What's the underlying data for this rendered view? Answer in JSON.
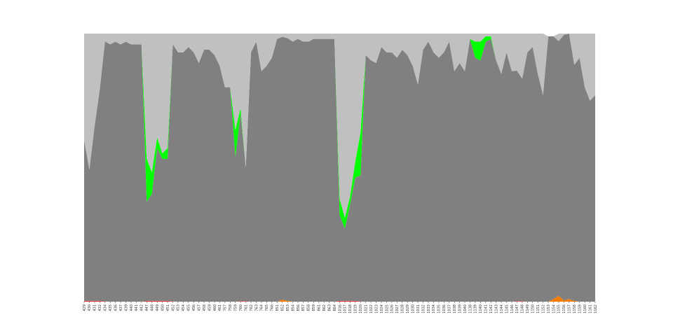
{
  "chart_data": {
    "type": "area",
    "stacked": true,
    "title": "",
    "xlabel": "",
    "ylabel": "",
    "ylim": [
      0,
      100
    ],
    "grid": false,
    "legend": "none",
    "categories": [
      "429",
      "430",
      "431",
      "432",
      "434",
      "435",
      "436",
      "437",
      "439",
      "440",
      "441",
      "442",
      "447",
      "448",
      "449",
      "450",
      "451",
      "452",
      "453",
      "454",
      "455",
      "456",
      "457",
      "458",
      "459",
      "460",
      "461",
      "757",
      "758",
      "759",
      "760",
      "761",
      "762",
      "763",
      "764",
      "765",
      "766",
      "851",
      "852",
      "853",
      "854",
      "856",
      "857",
      "858",
      "859",
      "861",
      "862",
      "863",
      "864",
      "1016",
      "1017",
      "1018",
      "1019",
      "1020",
      "1021",
      "1022",
      "1023",
      "1024",
      "1025",
      "1026",
      "1027",
      "1028",
      "1029",
      "1030",
      "1031",
      "1032",
      "1033",
      "1034",
      "1035",
      "1036",
      "1037",
      "1038",
      "1039",
      "1040",
      "1138",
      "1139",
      "1140",
      "1141",
      "1142",
      "1143",
      "1144",
      "1145",
      "1146",
      "1147",
      "1148",
      "1149",
      "1150",
      "1151",
      "1152",
      "1153",
      "1154",
      "1155",
      "1156",
      "1157",
      "1158",
      "1159",
      "1160",
      "1161",
      "1162"
    ],
    "series": [
      {
        "color": "#e53935",
        "values": [
          0.3,
          0.3,
          0.3,
          0.3,
          0.1,
          0,
          0,
          0,
          0,
          0,
          0,
          0,
          0.3,
          0.3,
          0.3,
          0.3,
          0.3,
          0.1,
          0,
          0,
          0,
          0,
          0,
          0,
          0,
          0,
          0,
          0,
          0,
          0,
          0.2,
          0.2,
          0,
          0,
          0,
          0,
          0,
          0,
          0,
          0,
          0,
          0,
          0,
          0,
          0,
          0,
          0,
          0,
          0,
          0.3,
          0.3,
          0.3,
          0.3,
          0.1,
          0,
          0,
          0,
          0,
          0,
          0,
          0,
          0,
          0,
          0,
          0,
          0,
          0,
          0,
          0,
          0,
          0,
          0,
          0,
          0,
          0,
          0,
          0,
          0,
          0,
          0,
          0,
          0,
          0,
          0.2,
          0.2,
          0,
          0,
          0,
          0,
          0,
          0,
          0,
          0,
          0,
          0,
          0,
          0,
          0,
          0
        ]
      },
      {
        "color": "#f57c00",
        "values": [
          0,
          0,
          0,
          0,
          0,
          0,
          0,
          0,
          0,
          0,
          0,
          0,
          0,
          0,
          0,
          0,
          0,
          0,
          0,
          0,
          0,
          0,
          0,
          0,
          0,
          0,
          0,
          0,
          0,
          0,
          0,
          0,
          0,
          0,
          0,
          0,
          0,
          0,
          0.8,
          0.3,
          0,
          0,
          0,
          0,
          0,
          0,
          0,
          0,
          0,
          0,
          0,
          0,
          0,
          0,
          0,
          0,
          0,
          0,
          0,
          0,
          0,
          0,
          0,
          0,
          0,
          0,
          0,
          0,
          0,
          0,
          0,
          0,
          0,
          0,
          0,
          0,
          0,
          0,
          0,
          0,
          0,
          0,
          0,
          0,
          0,
          0,
          0,
          0,
          0,
          0,
          1.0,
          2.2,
          0.5,
          1.0,
          0.3,
          0,
          0,
          0,
          0
        ]
      },
      {
        "color": "#808080",
        "values": [
          60,
          49,
          65,
          79,
          97,
          96,
          97,
          96,
          97,
          96,
          96,
          96,
          37,
          40,
          57,
          53,
          53,
          96,
          93,
          93,
          95,
          93,
          89,
          94,
          94,
          92,
          88,
          80,
          80,
          54,
          70,
          50,
          93,
          97,
          86,
          88,
          91,
          98,
          98,
          98,
          97,
          98,
          97,
          97,
          98,
          98,
          98,
          98,
          98,
          32,
          27,
          36,
          46,
          47,
          92,
          90,
          89,
          95,
          93,
          93,
          91,
          94,
          92,
          88,
          81,
          94,
          97,
          93,
          91,
          93,
          97,
          86,
          89,
          86,
          98,
          91,
          90,
          97,
          98,
          90,
          85,
          93,
          86,
          86,
          83,
          93,
          95,
          85,
          77,
          99,
          98,
          95,
          99,
          99,
          88,
          91,
          80,
          75,
          77
        ]
      },
      {
        "color": "#00ff00",
        "values": [
          0,
          0,
          0,
          0,
          0,
          0,
          0,
          0,
          0,
          0,
          0,
          0,
          16,
          8,
          4,
          2,
          4,
          0,
          0,
          0,
          0,
          0,
          0,
          0,
          0,
          0,
          0,
          0,
          0,
          10,
          2,
          0,
          0,
          0,
          0,
          0,
          0,
          0,
          0,
          0,
          0,
          0,
          0,
          0,
          0,
          0,
          0,
          0,
          0,
          6,
          4,
          3,
          6,
          16,
          0,
          0,
          0,
          0,
          0,
          0,
          0,
          0,
          0,
          0,
          0,
          0,
          0,
          0,
          0,
          0,
          0,
          0,
          0,
          0,
          0,
          6,
          7,
          2,
          1,
          0,
          0,
          0,
          0,
          0,
          0,
          0,
          0,
          0,
          0,
          0,
          0,
          0,
          0,
          0,
          0,
          0,
          0,
          0,
          0
        ]
      },
      {
        "color": "#c0c0c0",
        "values": [
          39.7,
          50.7,
          34.7,
          20.7,
          2.9,
          4,
          3,
          4,
          3,
          4,
          4,
          4,
          46.7,
          51.7,
          38.7,
          44.7,
          42.7,
          3.9,
          7,
          7,
          5,
          7,
          11,
          6,
          6,
          8,
          12,
          20,
          20,
          36,
          27.8,
          49.8,
          7,
          3,
          14,
          12,
          9,
          2,
          1.2,
          1.7,
          3,
          2,
          3,
          3,
          2,
          2,
          2,
          2,
          2,
          61.7,
          68.7,
          60.7,
          47.7,
          36.9,
          8,
          10,
          11,
          5,
          7,
          7,
          9,
          6,
          8,
          12,
          19,
          6,
          3,
          7,
          9,
          7,
          3,
          14,
          11,
          14,
          2,
          3,
          3,
          1,
          1,
          10,
          15,
          7,
          14,
          13.8,
          16.8,
          7,
          5,
          15,
          23,
          0,
          0,
          2.8,
          0.5,
          0,
          11.7,
          9,
          20,
          25,
          23
        ]
      }
    ]
  }
}
